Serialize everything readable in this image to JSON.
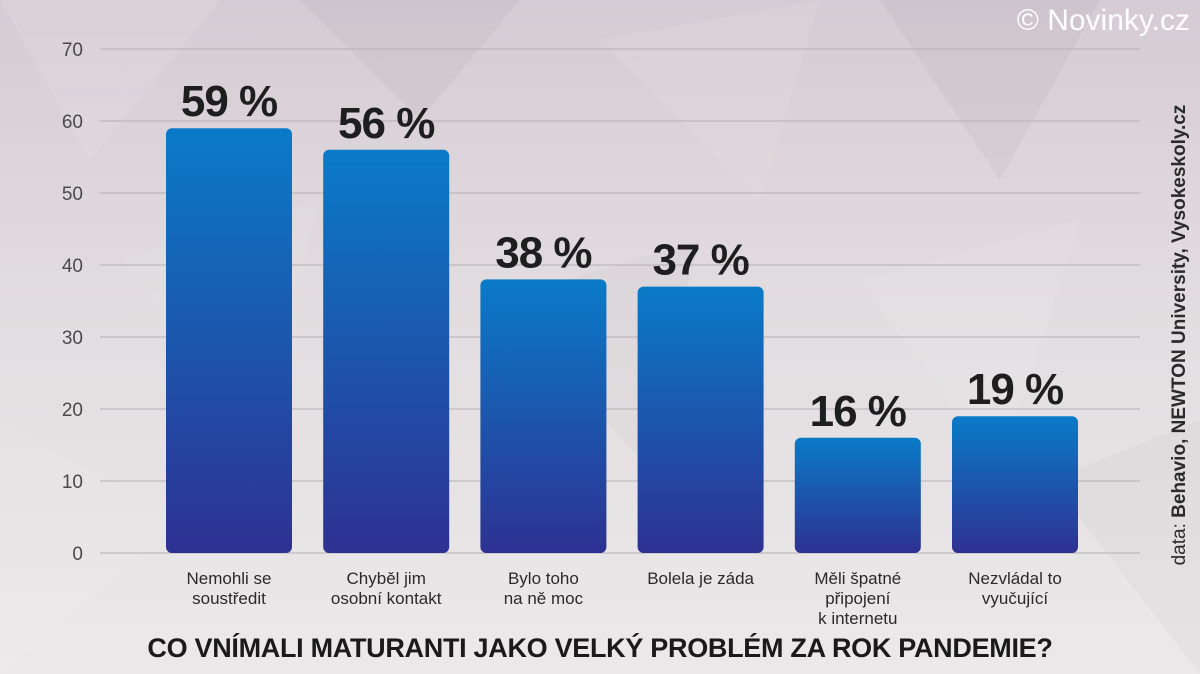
{
  "watermark": "© Novinky.cz",
  "source": {
    "prefix": "data: ",
    "names": "Behavio, NEWTON University, Vysokeskoly.cz"
  },
  "colors": {
    "bar_top": "#0a7bc8",
    "bar_bottom": "#2e3192",
    "grid": "#b4afb3",
    "text": "#1e1e1e"
  },
  "chart_data": {
    "type": "bar",
    "title": "CO VNÍMALI MATURANTI JAKO VELKÝ PROBLÉM ZA ROK PANDEMIE?",
    "categories": [
      [
        "Nemohli se",
        "soustředit"
      ],
      [
        "Chyběl jim",
        "osobní kontakt"
      ],
      [
        "Bylo toho",
        "na ně moc"
      ],
      [
        "Bolela je záda"
      ],
      [
        "Měli špatné",
        "připojení",
        "k internetu"
      ],
      [
        "Nezvládal to",
        "vyučující"
      ]
    ],
    "values": [
      59,
      56,
      38,
      37,
      16,
      19
    ],
    "data_labels": [
      "59 %",
      "56 %",
      "38 %",
      "37 %",
      "16 %",
      "19 %"
    ],
    "y_ticks": [
      0,
      10,
      20,
      30,
      40,
      50,
      60,
      70
    ],
    "ylim": [
      0,
      70
    ],
    "grid": true,
    "legend": "none"
  }
}
